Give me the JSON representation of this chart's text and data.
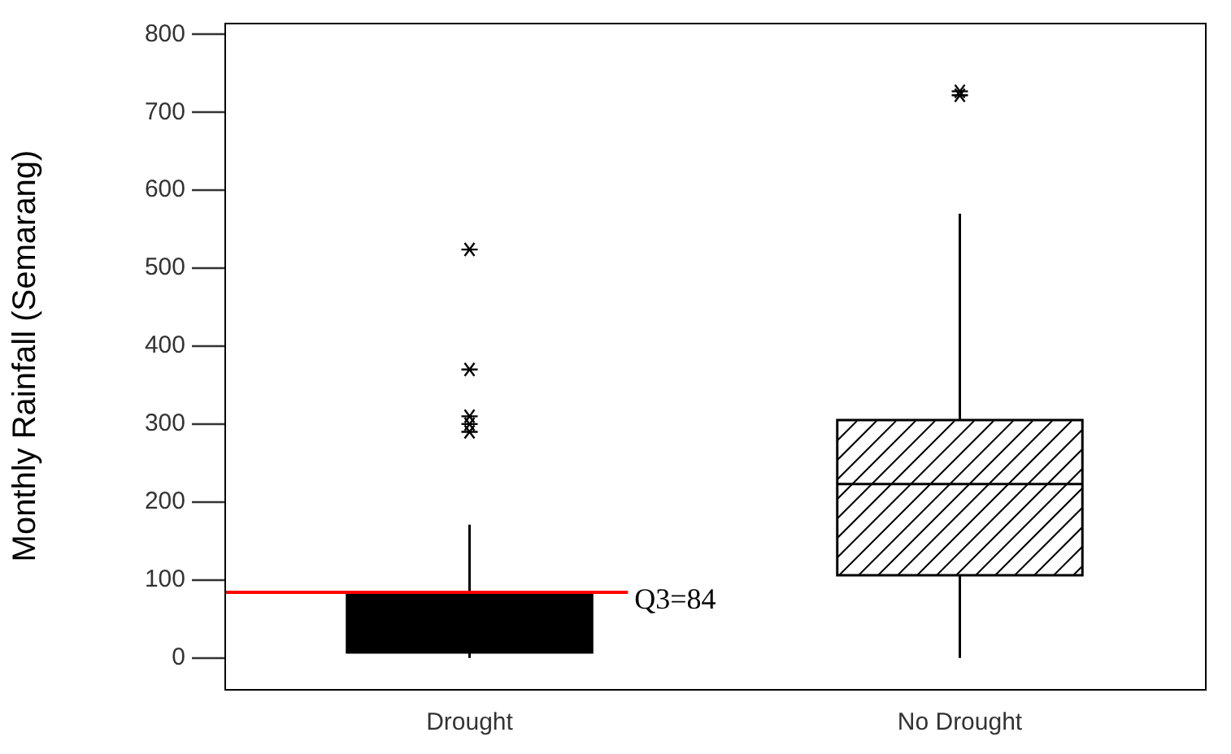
{
  "chart_data": {
    "type": "box",
    "ylabel": "Monthly Rainfall (Semarang)",
    "categories": [
      "Drought",
      "No Drought"
    ],
    "colors": [
      "#000000",
      "#ffffff"
    ],
    "boxes": [
      {
        "low": 0,
        "q1": 7,
        "median": null,
        "q3": 84,
        "high": 171,
        "outliers": [
          524,
          370,
          310,
          300,
          290
        ]
      },
      {
        "low": 0,
        "q1": 106,
        "median": 223,
        "q3": 305,
        "high": 570,
        "outliers": [
          727,
          722
        ]
      }
    ],
    "ylim": [
      -40,
      815
    ],
    "yticks": [
      0,
      100,
      200,
      300,
      400,
      500,
      600,
      700,
      800
    ],
    "grid": false,
    "ref_lines": [
      {
        "axis": "y",
        "value": 84,
        "label": "Q3=84",
        "color": "#ff0000"
      }
    ]
  }
}
